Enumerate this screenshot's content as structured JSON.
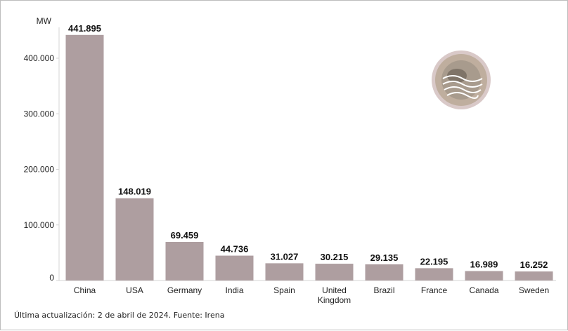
{
  "chart_data": {
    "type": "bar",
    "unit": "MW",
    "categories": [
      "China",
      "USA",
      "Germany",
      "India",
      "Spain",
      "United Kingdom",
      "Brazil",
      "France",
      "Canada",
      "Sweden"
    ],
    "values": [
      441895,
      148019,
      69459,
      44736,
      31027,
      30215,
      29135,
      22195,
      16989,
      16252
    ],
    "value_labels": [
      "441.895",
      "148.019",
      "69.459",
      "44.736",
      "31.027",
      "30.215",
      "29.135",
      "22.195",
      "16.989",
      "16.252"
    ],
    "yticks": [
      0,
      100000,
      200000,
      300000,
      400000
    ],
    "ytick_labels": [
      "0",
      "100.000",
      "200.000",
      "300.000",
      "400.000"
    ],
    "ylim": [
      0,
      450000
    ],
    "grid": false,
    "bar_color": "#ae9ea0"
  },
  "footnote": "Última actualización: 2 de abril de 2024. Fuente: Irena",
  "logo": {
    "icon": "wind-globe-logo",
    "colors": [
      "#bfae9e",
      "#7f7468",
      "#d9c9c8"
    ]
  }
}
